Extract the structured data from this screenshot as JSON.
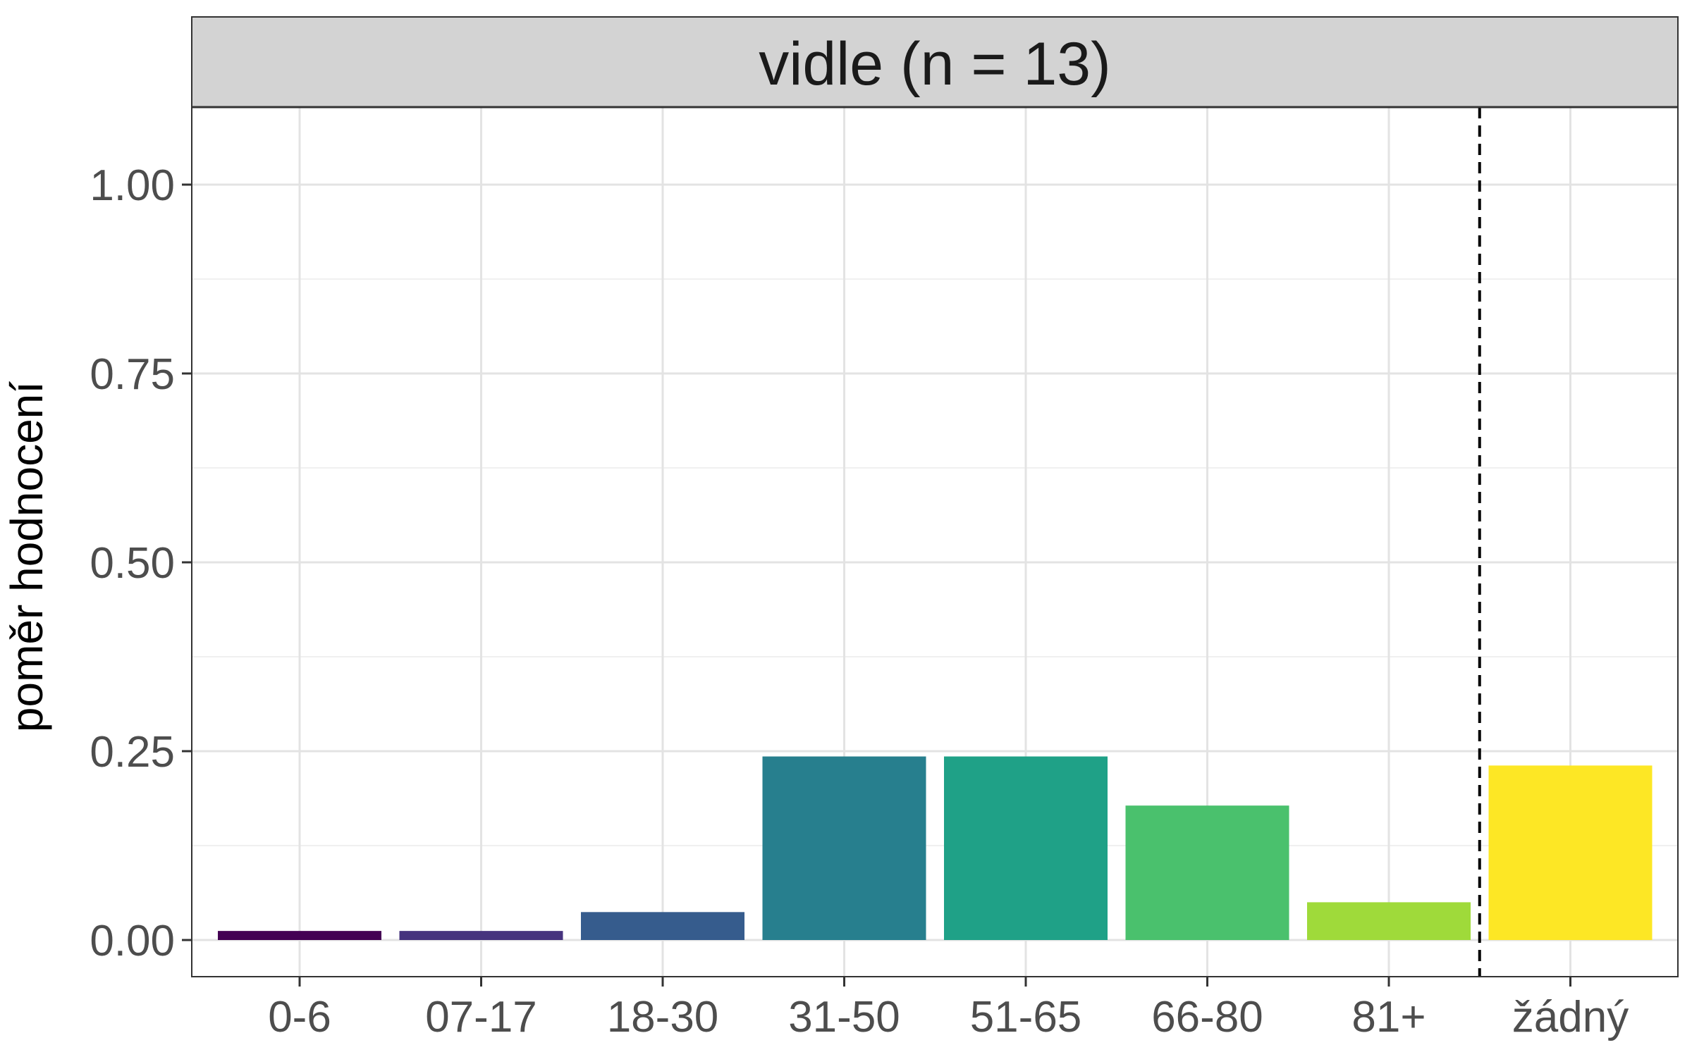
{
  "chart_data": {
    "type": "bar",
    "panel_title": "vidle (n = 13)",
    "ylabel": "poměr hodnocení",
    "xlabel": "",
    "categories": [
      "0-6",
      "07-17",
      "18-30",
      "31-50",
      "51-65",
      "66-80",
      "81+",
      "žádný"
    ],
    "values": [
      0.012,
      0.012,
      0.037,
      0.243,
      0.243,
      0.178,
      0.05,
      0.231
    ],
    "colors": [
      "#440154",
      "#46337E",
      "#365C8D",
      "#277F8E",
      "#1FA187",
      "#4AC16D",
      "#9FDA3A",
      "#FDE725"
    ],
    "ylim": [
      0,
      1.1
    ],
    "yticks": [
      0.0,
      0.25,
      0.5,
      0.75,
      1.0
    ],
    "ytick_labels": [
      "0.00",
      "0.25",
      "0.50",
      "0.75",
      "1.00"
    ],
    "grid": true,
    "reference_line": {
      "after_category": "81+",
      "style": "dashed"
    }
  }
}
